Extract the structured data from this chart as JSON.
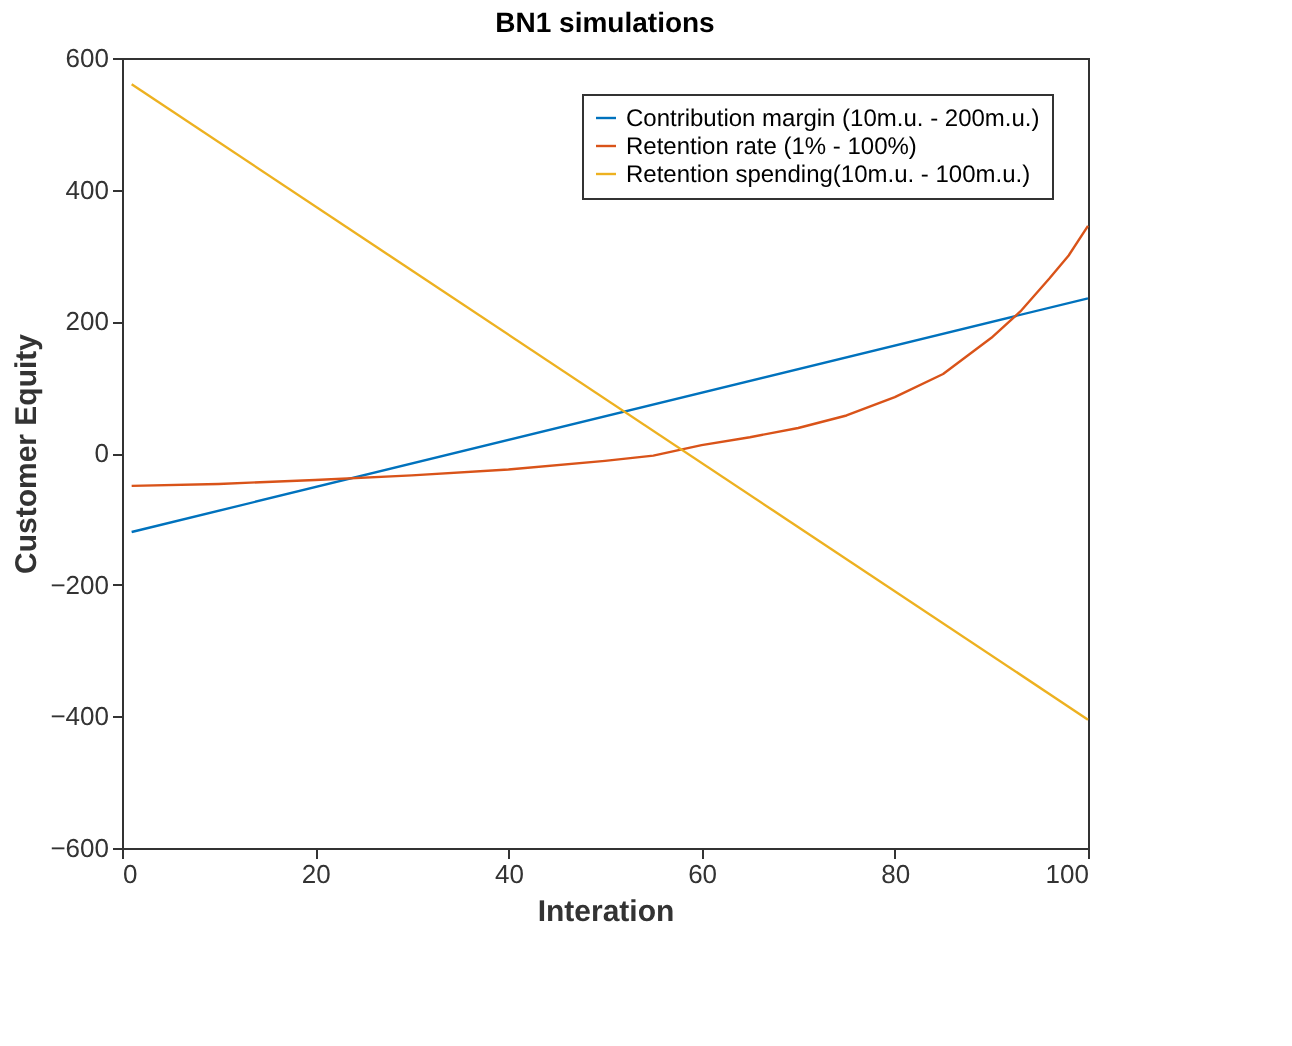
{
  "chart_data": {
    "type": "line",
    "title": "BN1 simulations",
    "xlabel": "Interation",
    "ylabel": "Customer Equity",
    "xlim": [
      0,
      100
    ],
    "xticks": [
      0,
      20,
      40,
      60,
      80,
      100
    ],
    "ylim": [
      -600,
      600
    ],
    "yticks": [
      -600,
      -400,
      -200,
      0,
      200,
      400,
      600
    ],
    "grid": false,
    "legend": "top right",
    "line_style": "solid",
    "marker": "none",
    "series": [
      {
        "name": "Contribution margin (10m.u. - 200m.u.)",
        "color": "#0072bd",
        "x": [
          1,
          100
        ],
        "values": [
          -120,
          235
        ]
      },
      {
        "name": "Retention rate (1% - 100%)",
        "color": "#d95319",
        "x": [
          1,
          10,
          20,
          30,
          40,
          50,
          55,
          60,
          65,
          70,
          75,
          80,
          85,
          90,
          93,
          96,
          98,
          100
        ],
        "values": [
          -50,
          -47,
          -41,
          -34,
          -25,
          -12,
          -4,
          12,
          24,
          38,
          57,
          85,
          120,
          175,
          215,
          265,
          300,
          345
        ]
      },
      {
        "name": "Retention spending(10m.u. - 100m.u.)",
        "color": "#edb120",
        "x": [
          1,
          100
        ],
        "values": [
          560,
          -405
        ]
      }
    ]
  }
}
